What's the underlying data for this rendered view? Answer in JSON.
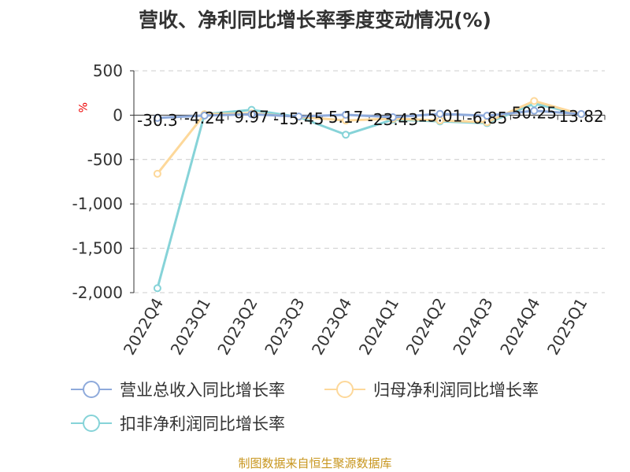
{
  "title": "营收、净利同比增长率季度变动情况(%)",
  "footer": "制图数据来自恒生聚源数据库",
  "chart_data": {
    "type": "line",
    "title": "营收、净利同比增长率季度变动情况(%)",
    "ylabel": "%",
    "ylim": [
      -2000,
      500
    ],
    "yticks": [
      "500",
      "0",
      "-500",
      "-1,000",
      "-1,500",
      "-2,000"
    ],
    "grid": true,
    "legend_position": "bottom",
    "categories": [
      "2022Q4",
      "2023Q1",
      "2023Q2",
      "2023Q3",
      "2023Q4",
      "2024Q1",
      "2024Q2",
      "2024Q3",
      "2024Q4",
      "2025Q1"
    ],
    "series": [
      {
        "name": "营业总收入同比增长率",
        "color": "#8eaadb",
        "values": [
          -30.3,
          -4.24,
          9.97,
          -15.45,
          5.17,
          -23.43,
          15.01,
          -6.85,
          50.25,
          13.82
        ],
        "labels": true
      },
      {
        "name": "归母净利润同比增长率",
        "color": "#fdd89a",
        "values": [
          -660,
          10,
          20,
          -20,
          -60,
          -40,
          -60,
          -80,
          160,
          10
        ]
      },
      {
        "name": "扣非净利润同比增长率",
        "color": "#86d3d8",
        "values": [
          -1950,
          10,
          60,
          -20,
          -220,
          -50,
          -70,
          -90,
          130,
          10
        ]
      }
    ]
  }
}
